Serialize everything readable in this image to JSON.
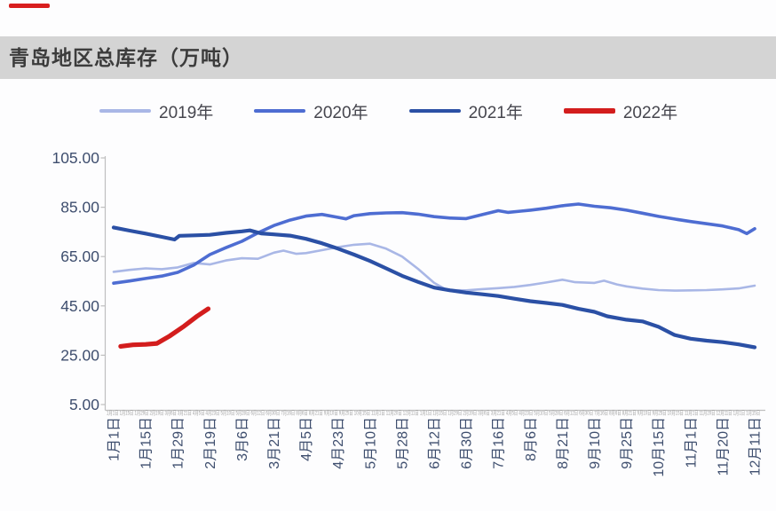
{
  "page": {
    "title": "青岛地区总库存（万吨）"
  },
  "chart_data": {
    "type": "line",
    "title": "青岛地区总库存（万吨）",
    "xlabel": "",
    "ylabel": "",
    "ylim": [
      5,
      105
    ],
    "grid": false,
    "legend_position": "top",
    "axis_label_color": "#3e4e6e",
    "yticks": [
      {
        "v": 105,
        "label": "105.00"
      },
      {
        "v": 85,
        "label": "85.00"
      },
      {
        "v": 65,
        "label": "65.00"
      },
      {
        "v": 45,
        "label": "45.00"
      },
      {
        "v": 25,
        "label": "25.00"
      },
      {
        "v": 5,
        "label": "5.00"
      }
    ],
    "x_tick_labels": [
      "1月1日",
      "1月15日",
      "1月29日",
      "2月19日",
      "3月6日",
      "3月21日",
      "4月5日",
      "4月23日",
      "5月10日",
      "5月28日",
      "6月12日",
      "6月30日",
      "7月16日",
      "8月6日",
      "8月21日",
      "9月10日",
      "9月25日",
      "10月15日",
      "11月1日",
      "11月20日",
      "12月11日"
    ],
    "series": [
      {
        "name": "2019年",
        "color": "#a9b7e6",
        "width": 2.6,
        "points": [
          [
            0,
            58.8
          ],
          [
            0.5,
            59.6
          ],
          [
            1,
            60.2
          ],
          [
            1.5,
            59.9
          ],
          [
            2,
            60.6
          ],
          [
            2.5,
            62.4
          ],
          [
            3,
            61.8
          ],
          [
            3.5,
            63.4
          ],
          [
            4,
            64.3
          ],
          [
            4.5,
            64.1
          ],
          [
            5,
            66.6
          ],
          [
            5.3,
            67.4
          ],
          [
            5.7,
            66.1
          ],
          [
            6,
            66.4
          ],
          [
            6.5,
            67.6
          ],
          [
            7,
            68.8
          ],
          [
            7.5,
            69.8
          ],
          [
            8,
            70.2
          ],
          [
            8.5,
            68.2
          ],
          [
            9,
            65.0
          ],
          [
            9.5,
            60.0
          ],
          [
            10,
            54.3
          ],
          [
            10.4,
            51.4
          ],
          [
            11,
            51.3
          ],
          [
            11.5,
            51.8
          ],
          [
            12,
            52.2
          ],
          [
            12.5,
            52.7
          ],
          [
            13,
            53.5
          ],
          [
            13.5,
            54.5
          ],
          [
            14,
            55.6
          ],
          [
            14.4,
            54.6
          ],
          [
            15,
            54.3
          ],
          [
            15.3,
            55.2
          ],
          [
            15.7,
            53.7
          ],
          [
            16,
            52.9
          ],
          [
            16.5,
            52.0
          ],
          [
            17,
            51.4
          ],
          [
            17.5,
            51.2
          ],
          [
            18,
            51.3
          ],
          [
            18.5,
            51.4
          ],
          [
            19,
            51.7
          ],
          [
            19.5,
            52.1
          ],
          [
            20,
            53.2
          ]
        ]
      },
      {
        "name": "2020年",
        "color": "#4e6dd2",
        "width": 3.6,
        "points": [
          [
            0,
            54.2
          ],
          [
            0.5,
            55.1
          ],
          [
            1,
            56.1
          ],
          [
            1.5,
            57.1
          ],
          [
            2,
            58.6
          ],
          [
            2.5,
            61.6
          ],
          [
            3,
            65.8
          ],
          [
            3.5,
            68.6
          ],
          [
            4,
            71.2
          ],
          [
            4.5,
            74.6
          ],
          [
            5,
            77.6
          ],
          [
            5.5,
            79.8
          ],
          [
            6,
            81.4
          ],
          [
            6.5,
            82.1
          ],
          [
            7,
            80.9
          ],
          [
            7.25,
            80.3
          ],
          [
            7.5,
            81.6
          ],
          [
            8,
            82.4
          ],
          [
            8.5,
            82.7
          ],
          [
            9,
            82.8
          ],
          [
            9.5,
            82.2
          ],
          [
            10,
            81.2
          ],
          [
            10.5,
            80.6
          ],
          [
            11,
            80.4
          ],
          [
            11.5,
            82.0
          ],
          [
            12,
            83.6
          ],
          [
            12.3,
            82.9
          ],
          [
            12.7,
            83.4
          ],
          [
            13,
            83.8
          ],
          [
            13.5,
            84.6
          ],
          [
            14,
            85.6
          ],
          [
            14.5,
            86.3
          ],
          [
            15,
            85.4
          ],
          [
            15.5,
            84.8
          ],
          [
            16,
            83.8
          ],
          [
            16.5,
            82.6
          ],
          [
            17,
            81.3
          ],
          [
            17.5,
            80.2
          ],
          [
            18,
            79.2
          ],
          [
            18.5,
            78.3
          ],
          [
            19,
            77.4
          ],
          [
            19.5,
            75.9
          ],
          [
            19.75,
            74.3
          ],
          [
            20,
            76.3
          ]
        ]
      },
      {
        "name": "2021年",
        "color": "#2b50a5",
        "width": 4.2,
        "points": [
          [
            0,
            76.8
          ],
          [
            0.5,
            75.5
          ],
          [
            1,
            74.3
          ],
          [
            1.5,
            73.0
          ],
          [
            1.9,
            71.9
          ],
          [
            2.05,
            73.4
          ],
          [
            2.5,
            73.6
          ],
          [
            3,
            73.8
          ],
          [
            3.5,
            74.6
          ],
          [
            4,
            75.2
          ],
          [
            4.25,
            75.6
          ],
          [
            4.6,
            74.4
          ],
          [
            5,
            74.0
          ],
          [
            5.5,
            73.5
          ],
          [
            6,
            72.2
          ],
          [
            6.5,
            70.4
          ],
          [
            7,
            68.2
          ],
          [
            7.5,
            65.8
          ],
          [
            8,
            63.2
          ],
          [
            8.5,
            60.2
          ],
          [
            9,
            57.2
          ],
          [
            9.5,
            54.7
          ],
          [
            10,
            52.4
          ],
          [
            10.5,
            51.3
          ],
          [
            11,
            50.4
          ],
          [
            11.5,
            49.7
          ],
          [
            12,
            49.0
          ],
          [
            12.5,
            47.9
          ],
          [
            13,
            46.9
          ],
          [
            13.5,
            46.2
          ],
          [
            14,
            45.4
          ],
          [
            14.5,
            43.8
          ],
          [
            15,
            42.6
          ],
          [
            15.4,
            40.8
          ],
          [
            16,
            39.4
          ],
          [
            16.5,
            38.7
          ],
          [
            17,
            36.5
          ],
          [
            17.5,
            33.2
          ],
          [
            18,
            31.7
          ],
          [
            18.5,
            30.9
          ],
          [
            19,
            30.3
          ],
          [
            19.5,
            29.4
          ],
          [
            20,
            28.2
          ]
        ]
      },
      {
        "name": "2022年",
        "color": "#d31d1d",
        "width": 5.2,
        "points": [
          [
            0.22,
            28.6
          ],
          [
            0.6,
            29.2
          ],
          [
            1,
            29.4
          ],
          [
            1.35,
            29.8
          ],
          [
            1.75,
            32.8
          ],
          [
            2.2,
            36.8
          ],
          [
            2.6,
            40.8
          ],
          [
            2.95,
            43.8
          ]
        ]
      }
    ]
  }
}
